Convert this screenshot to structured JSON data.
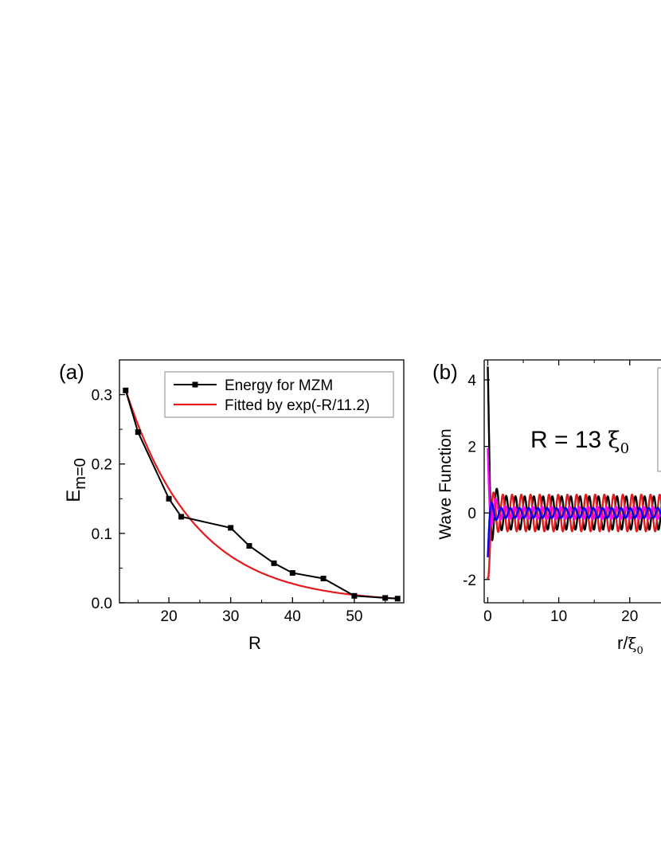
{
  "chart_data": [
    {
      "type": "line",
      "panel_label": "(a)",
      "xlabel": "R",
      "ylabel": "E",
      "ylabel_sub": "m=0",
      "xlim": [
        12,
        58
      ],
      "ylim": [
        0.0,
        0.35
      ],
      "xticks": [
        20,
        30,
        40,
        50
      ],
      "xtick_labels": [
        "20",
        "30",
        "40",
        "50"
      ],
      "yticks": [
        0.0,
        0.1,
        0.2,
        0.3
      ],
      "ytick_labels": [
        "0.0",
        "0.1",
        "0.2",
        "0.3"
      ],
      "legend_position": "top-right",
      "series": [
        {
          "name": "Energy for MZM",
          "color": "#000000",
          "marker": "square",
          "x": [
            13,
            15,
            20,
            22,
            30,
            33,
            37,
            40,
            45,
            50,
            55,
            57
          ],
          "y": [
            0.306,
            0.246,
            0.15,
            0.124,
            0.108,
            0.082,
            0.057,
            0.043,
            0.035,
            0.01,
            0.007,
            0.006
          ]
        },
        {
          "name": "Fitted by exp(-R/11.2)",
          "color": "#e41a1c",
          "function": "exp(-R/11.2)",
          "amplitude": 0.98,
          "x_range": [
            13,
            57
          ]
        }
      ]
    },
    {
      "type": "line",
      "panel_label": "(b)",
      "annotation": "R = 13",
      "annotation_symbol": "ξ",
      "annotation_sub": "0",
      "xlabel": "r/",
      "xlabel_symbol": "ξ",
      "xlabel_sub": "0",
      "ylabel": "Wave Function",
      "xlim": [
        -0.5,
        25.3
      ],
      "ylim": [
        -2.7,
        4.6
      ],
      "xticks": [
        0,
        10,
        20
      ],
      "xtick_labels": [
        "0",
        "10",
        "20"
      ],
      "yticks": [
        -2,
        0,
        2,
        4
      ],
      "ytick_labels": [
        "-2",
        "0",
        "2",
        "4"
      ],
      "series": [
        {
          "color": "#000000",
          "peak": 4.4,
          "minimum": -1.8,
          "oscillation_amplitude": 0.5,
          "period": 1.3
        },
        {
          "color": "#e41a1c",
          "peak": 1.5,
          "minimum": -2.6,
          "oscillation_amplitude": 0.55,
          "period": 1.3
        },
        {
          "color": "#ff00ff",
          "peak": 2.35,
          "minimum": -0.8,
          "oscillation_amplitude": 0.2,
          "period": 1.3
        },
        {
          "color": "#0000ff",
          "peak": 0.75,
          "minimum": -1.4,
          "oscillation_amplitude": 0.15,
          "period": 1.3
        }
      ]
    }
  ]
}
